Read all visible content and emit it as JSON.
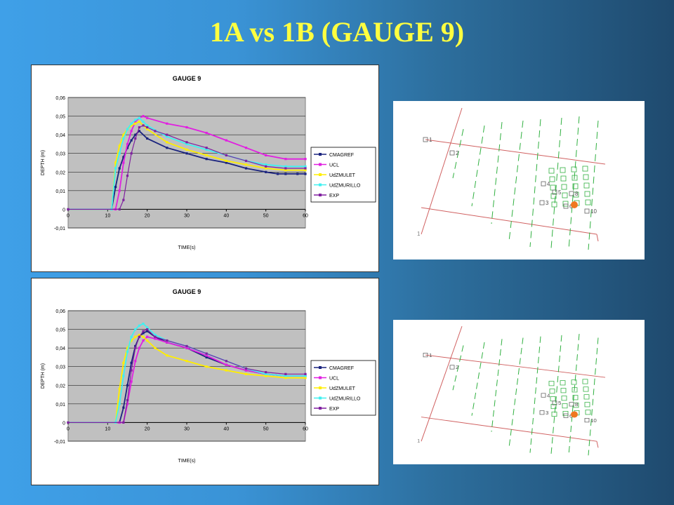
{
  "slide": {
    "title": "1A vs 1B   (GAUGE 9)"
  },
  "colors": {
    "CMAGREF": "#1a237e",
    "UCL": "#e020e0",
    "UdZMULET": "#ffee00",
    "UdZMURILLO": "#40f0f0",
    "EXP": "#8020a0",
    "plot_bg": "#c0c0c0",
    "gauge_marker": "#f07820",
    "map_line": "#d06060",
    "map_green": "#30b040"
  },
  "chart_data": [
    {
      "type": "line",
      "title": "GAUGE 9",
      "xlabel": "TIME(s)",
      "ylabel": "DEPTH (m)",
      "xlim": [
        0,
        60
      ],
      "ylim": [
        -0.01,
        0.06
      ],
      "xticks": [
        "0",
        "10",
        "20",
        "30",
        "40",
        "50",
        "60"
      ],
      "yticks": [
        "-0,01",
        "0",
        "0,01",
        "0,02",
        "0,03",
        "0,04",
        "0,05",
        "0,06"
      ],
      "legend_position": "right",
      "series": [
        {
          "name": "CMAGREF",
          "marker": "diamond",
          "x": [
            0,
            11,
            12,
            13,
            14,
            15,
            16,
            17,
            18,
            20,
            25,
            30,
            35,
            40,
            45,
            50,
            53,
            55,
            58,
            60
          ],
          "y": [
            0,
            0,
            0.012,
            0.022,
            0.028,
            0.033,
            0.037,
            0.04,
            0.042,
            0.038,
            0.033,
            0.03,
            0.027,
            0.025,
            0.022,
            0.02,
            0.019,
            0.019,
            0.019,
            0.019
          ]
        },
        {
          "name": "UCL",
          "marker": "square",
          "x": [
            0,
            11,
            12,
            13,
            14,
            15,
            16,
            17,
            18,
            19,
            20,
            25,
            30,
            35,
            40,
            45,
            50,
            55,
            60
          ],
          "y": [
            0,
            0,
            0,
            0.01,
            0.025,
            0.035,
            0.042,
            0.047,
            0.049,
            0.05,
            0.049,
            0.046,
            0.044,
            0.041,
            0.037,
            0.033,
            0.029,
            0.027,
            0.027
          ]
        },
        {
          "name": "UdZMULET",
          "marker": "triangle",
          "x": [
            0,
            11,
            12,
            13,
            14,
            15,
            16,
            17,
            18,
            19,
            20,
            25,
            30,
            35,
            40,
            45,
            50,
            55,
            60
          ],
          "y": [
            0,
            0,
            0.025,
            0.034,
            0.04,
            0.043,
            0.045,
            0.046,
            0.047,
            0.045,
            0.043,
            0.036,
            0.032,
            0.029,
            0.026,
            0.024,
            0.022,
            0.021,
            0.021
          ]
        },
        {
          "name": "UdZMURILLO",
          "marker": "x",
          "x": [
            0,
            11,
            12,
            13,
            14,
            15,
            16,
            17,
            18,
            19,
            20,
            25,
            30,
            35,
            40,
            45,
            50,
            55,
            60
          ],
          "y": [
            0,
            0,
            0.022,
            0.03,
            0.038,
            0.043,
            0.046,
            0.048,
            0.049,
            0.047,
            0.045,
            0.039,
            0.035,
            0.032,
            0.029,
            0.026,
            0.024,
            0.023,
            0.023
          ]
        },
        {
          "name": "EXP",
          "marker": "star",
          "x": [
            0,
            13,
            14,
            15,
            16,
            17,
            18,
            19,
            20,
            22,
            25,
            30,
            35,
            40,
            45,
            50,
            55,
            60
          ],
          "y": [
            0,
            0,
            0.005,
            0.018,
            0.03,
            0.038,
            0.044,
            0.045,
            0.044,
            0.042,
            0.04,
            0.036,
            0.033,
            0.029,
            0.026,
            0.023,
            0.022,
            0.022
          ]
        }
      ]
    },
    {
      "type": "line",
      "title": "GAUGE 9",
      "xlabel": "TIME(s)",
      "ylabel": "DEPTH (m)",
      "xlim": [
        0,
        60
      ],
      "ylim": [
        -0.01,
        0.06
      ],
      "xticks": [
        "0",
        "10",
        "20",
        "30",
        "40",
        "50",
        "60"
      ],
      "yticks": [
        "-0,01",
        "0",
        "0,01",
        "0,02",
        "0,03",
        "0,04",
        "0,05",
        "0,06"
      ],
      "legend_position": "right",
      "series": [
        {
          "name": "CMAGREF",
          "marker": "diamond",
          "x": [
            0,
            13,
            14,
            15,
            16,
            17,
            18,
            19,
            20,
            22,
            25,
            30,
            35,
            40,
            45,
            50,
            55,
            60
          ],
          "y": [
            0,
            0,
            0.008,
            0.02,
            0.032,
            0.041,
            0.046,
            0.048,
            0.049,
            0.046,
            0.043,
            0.04,
            0.035,
            0.031,
            0.028,
            0.026,
            0.025,
            0.025
          ]
        },
        {
          "name": "UCL",
          "marker": "square",
          "x": [
            0,
            13,
            14,
            15,
            16,
            17,
            18,
            19,
            20,
            22,
            25,
            30,
            35,
            40,
            45,
            50,
            55,
            60
          ],
          "y": [
            0,
            0,
            0,
            0.01,
            0.022,
            0.033,
            0.04,
            0.044,
            0.046,
            0.045,
            0.043,
            0.04,
            0.036,
            0.031,
            0.028,
            0.026,
            0.025,
            0.025
          ]
        },
        {
          "name": "UdZMULET",
          "marker": "triangle",
          "x": [
            0,
            12,
            13,
            14,
            15,
            16,
            17,
            18,
            19,
            20,
            22,
            25,
            30,
            35,
            40,
            45,
            50,
            55,
            60
          ],
          "y": [
            0,
            0,
            0.018,
            0.032,
            0.04,
            0.044,
            0.046,
            0.047,
            0.046,
            0.044,
            0.04,
            0.036,
            0.033,
            0.03,
            0.028,
            0.026,
            0.025,
            0.024,
            0.024
          ]
        },
        {
          "name": "UdZMURILLO",
          "marker": "x",
          "x": [
            0,
            12,
            13,
            14,
            15,
            16,
            17,
            18,
            19,
            20,
            22,
            25,
            30,
            35,
            40,
            45,
            50,
            55,
            60
          ],
          "y": [
            0,
            0,
            0.01,
            0.025,
            0.038,
            0.046,
            0.05,
            0.052,
            0.053,
            0.051,
            0.047,
            0.044,
            0.041,
            0.037,
            0.033,
            0.029,
            0.026,
            0.025,
            0.025
          ]
        },
        {
          "name": "EXP",
          "marker": "star",
          "x": [
            0,
            14,
            15,
            16,
            17,
            18,
            19,
            20,
            22,
            25,
            30,
            35,
            40,
            45,
            50,
            55,
            60
          ],
          "y": [
            0,
            0,
            0.012,
            0.028,
            0.04,
            0.046,
            0.049,
            0.05,
            0.046,
            0.044,
            0.041,
            0.037,
            0.033,
            0.029,
            0.027,
            0.026,
            0.026
          ]
        }
      ]
    }
  ],
  "maps": [
    {
      "gauge_labels": [
        "1",
        "2",
        "3",
        "4",
        "5",
        "6",
        "8",
        "10"
      ],
      "corner_label": "1"
    },
    {
      "gauge_labels": [
        "1",
        "2",
        "3",
        "4",
        "5",
        "6",
        "8",
        "10"
      ],
      "corner_label": "1"
    }
  ]
}
